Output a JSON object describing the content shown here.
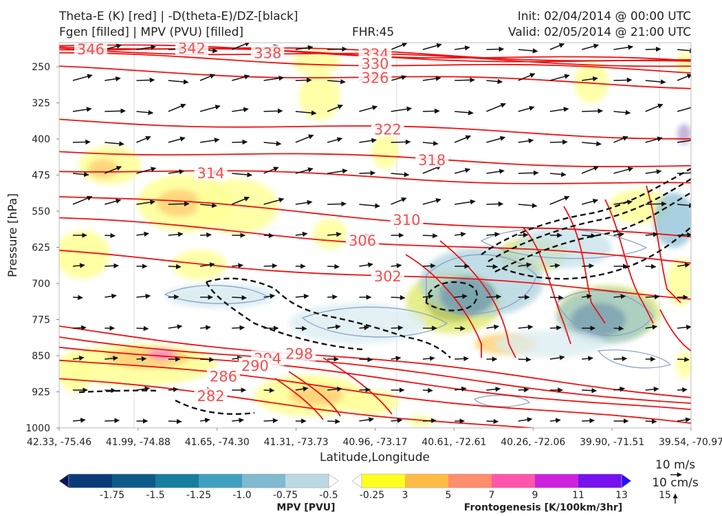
{
  "header": {
    "title_line1": "Theta-E (K) [red] | -D(theta-E)/DZ-[black]",
    "title_line2": "Fgen [filled] | MPV (PVU) [filled]",
    "fhr": "FHR:45",
    "init": "Init: 02/04/2014 @ 00:00 UTC",
    "valid": "Valid: 02/05/2014 @ 21:00 UTC"
  },
  "chart_data": {
    "type": "cross-section",
    "xlabel": "Latitude,Longitude",
    "ylabel": "Pressure [hPa]",
    "ylim": [
      1000,
      200
    ],
    "y_ticks": [
      250,
      325,
      400,
      475,
      550,
      625,
      700,
      775,
      850,
      925,
      1000
    ],
    "x_ticks": [
      "42.33, -75.46",
      "41.99, -74.88",
      "41.65, -74.30",
      "41.31, -73.73",
      "40.96, -73.17",
      "40.61, -72.61",
      "40.26, -72.06",
      "39.90, -71.51",
      "39.54, -70.97"
    ],
    "grid": true,
    "theta_e_color": "#ee1111",
    "theta_e_labels": [
      {
        "text": "346",
        "pos": 0.05,
        "p": 213
      },
      {
        "text": "342",
        "pos": 0.21,
        "p": 211
      },
      {
        "text": "338",
        "pos": 0.33,
        "p": 221
      },
      {
        "text": "334",
        "pos": 0.5,
        "p": 223
      },
      {
        "text": "330",
        "pos": 0.5,
        "p": 243
      },
      {
        "text": "326",
        "pos": 0.5,
        "p": 272
      },
      {
        "text": "322",
        "pos": 0.52,
        "p": 379
      },
      {
        "text": "318",
        "pos": 0.59,
        "p": 443
      },
      {
        "text": "314",
        "pos": 0.24,
        "p": 470
      },
      {
        "text": "310",
        "pos": 0.55,
        "p": 567
      },
      {
        "text": "306",
        "pos": 0.48,
        "p": 610
      },
      {
        "text": "302",
        "pos": 0.52,
        "p": 684
      },
      {
        "text": "298",
        "pos": 0.38,
        "p": 845
      },
      {
        "text": "294",
        "pos": 0.33,
        "p": 855
      },
      {
        "text": "290",
        "pos": 0.31,
        "p": 870
      },
      {
        "text": "286",
        "pos": 0.26,
        "p": 892
      },
      {
        "text": "282",
        "pos": 0.24,
        "p": 933
      }
    ],
    "mpv_colorbar": {
      "label": "MPV [PVU]",
      "ticks": [
        "-1.75",
        "-1.5",
        "-1.25",
        "-1.0",
        "-0.75",
        "-0.5",
        "-0.25"
      ],
      "colors": [
        "#08165e",
        "#0b3a78",
        "#0e5a8a",
        "#167e9e",
        "#3e9fbf",
        "#7fbad0",
        "#bad9e2",
        "#ffffff"
      ]
    },
    "fgen_colorbar": {
      "label": "Frontogenesis [K/100km/3hr]",
      "ticks": [
        "3",
        "5",
        "7",
        "9",
        "11",
        "13",
        "15"
      ],
      "colors": [
        "#ffffff",
        "#ffff22",
        "#ffbb44",
        "#ff8c6a",
        "#ff55aa",
        "#cc22dd",
        "#7711ee",
        "#2211ff"
      ]
    },
    "wind_key": {
      "horizontal": "10 m/s",
      "vertical": "10 cm/s"
    }
  }
}
